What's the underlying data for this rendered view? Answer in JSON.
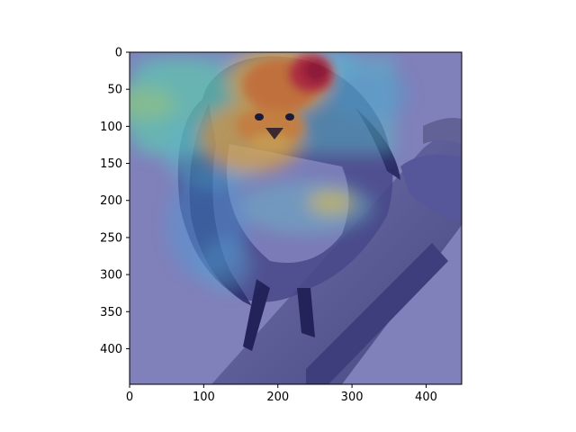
{
  "chart_data": {
    "type": "heatmap",
    "title": "",
    "xlabel": "",
    "ylabel": "",
    "xlim": [
      0,
      448
    ],
    "ylim": [
      448,
      0
    ],
    "y_inverted": true,
    "x_ticks": [
      0,
      100,
      200,
      300,
      400
    ],
    "y_ticks": [
      0,
      50,
      100,
      150,
      200,
      250,
      300,
      350,
      400
    ],
    "x_tick_labels": [
      "0",
      "100",
      "200",
      "300",
      "400"
    ],
    "y_tick_labels": [
      "0",
      "50",
      "100",
      "150",
      "200",
      "250",
      "300",
      "350",
      "400"
    ],
    "grid": false,
    "legend": "none",
    "colormap": "jet",
    "background_image": "photograph of a swallow perched on a rusty pipe",
    "hotspots": [
      {
        "region": "top of head",
        "x": 230,
        "y": 35,
        "intensity": 1.0
      },
      {
        "region": "beak and face",
        "x": 195,
        "y": 95,
        "intensity": 0.85
      },
      {
        "region": "upper breast",
        "x": 210,
        "y": 145,
        "intensity": 0.65
      },
      {
        "region": "right breast",
        "x": 275,
        "y": 205,
        "intensity": 0.5
      },
      {
        "region": "left shoulder",
        "x": 60,
        "y": 110,
        "intensity": 0.45
      },
      {
        "region": "left wing edge",
        "x": 110,
        "y": 230,
        "intensity": 0.4
      },
      {
        "region": "lower left",
        "x": 130,
        "y": 290,
        "intensity": 0.35
      },
      {
        "region": "top right",
        "x": 360,
        "y": 25,
        "intensity": 0.4
      },
      {
        "region": "right side",
        "x": 390,
        "y": 120,
        "intensity": 0.35
      }
    ]
  }
}
